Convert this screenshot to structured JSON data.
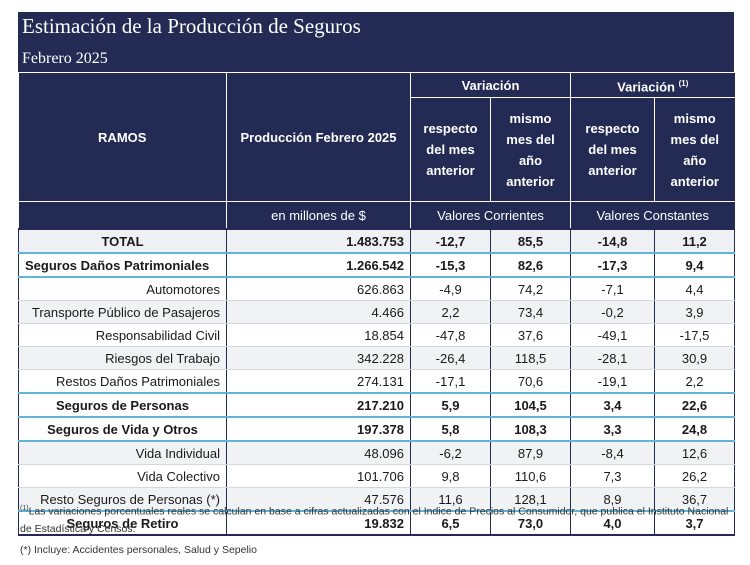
{
  "title": "Estimación de la Producción de Seguros",
  "subtitle": "Febrero 2025",
  "header": {
    "ramos": "RAMOS",
    "produccion": "Producción Febrero 2025",
    "variacion1": "Variación",
    "variacion2": "Variación",
    "variacion2_sup": "(1)",
    "respecto": "respecto del mes anterior",
    "mismo": "mismo mes del año anterior",
    "unit_prod": "en millones de $",
    "unit_corr": "Valores Corrientes",
    "unit_const": "Valores Constantes"
  },
  "rows": [
    {
      "name": "TOTAL",
      "prod": "1.483.753",
      "v1": "-12,7",
      "v2": "85,5",
      "v3": "-14,8",
      "v4": "11,2"
    },
    {
      "name": "Seguros Daños Patrimoniales",
      "prod": "1.266.542",
      "v1": "-15,3",
      "v2": "82,6",
      "v3": "-17,3",
      "v4": "9,4"
    },
    {
      "name": "Automotores",
      "prod": "626.863",
      "v1": "-4,9",
      "v2": "74,2",
      "v3": "-7,1",
      "v4": "4,4"
    },
    {
      "name": "Transporte Público de Pasajeros",
      "prod": "4.466",
      "v1": "2,2",
      "v2": "73,4",
      "v3": "-0,2",
      "v4": "3,9"
    },
    {
      "name": "Responsabilidad Civil",
      "prod": "18.854",
      "v1": "-47,8",
      "v2": "37,6",
      "v3": "-49,1",
      "v4": "-17,5"
    },
    {
      "name": "Riesgos del Trabajo",
      "prod": "342.228",
      "v1": "-26,4",
      "v2": "118,5",
      "v3": "-28,1",
      "v4": "30,9"
    },
    {
      "name": "Restos Daños Patrimoniales",
      "prod": "274.131",
      "v1": "-17,1",
      "v2": "70,6",
      "v3": "-19,1",
      "v4": "2,2"
    },
    {
      "name": "Seguros de Personas",
      "prod": "217.210",
      "v1": "5,9",
      "v2": "104,5",
      "v3": "3,4",
      "v4": "22,6"
    },
    {
      "name": "Seguros de Vida y Otros",
      "prod": "197.378",
      "v1": "5,8",
      "v2": "108,3",
      "v3": "3,3",
      "v4": "24,8"
    },
    {
      "name": "Vida Individual",
      "prod": "48.096",
      "v1": "-6,2",
      "v2": "87,9",
      "v3": "-8,4",
      "v4": "12,6"
    },
    {
      "name": "Vida Colectivo",
      "prod": "101.706",
      "v1": "9,8",
      "v2": "110,6",
      "v3": "7,3",
      "v4": "26,2"
    },
    {
      "name": "Resto Seguros de Personas (*)",
      "prod": "47.576",
      "v1": "11,6",
      "v2": "128,1",
      "v3": "8,9",
      "v4": "36,7"
    },
    {
      "name": "Seguros de Retiro",
      "prod": "19.832",
      "v1": "6,5",
      "v2": "73,0",
      "v3": "4,0",
      "v4": "3,7"
    }
  ],
  "notes": {
    "n1_sup": "(1)",
    "n1": "Las variaciones porcentuales reales se calculan en base a cifras actualizadas con  el Indice de Precios al Consumidor, que publica el Instituto Nacional de Estadística y  Censos.",
    "n2": "(*) Incluye: Accidentes personales, Salud y Sepelio"
  }
}
